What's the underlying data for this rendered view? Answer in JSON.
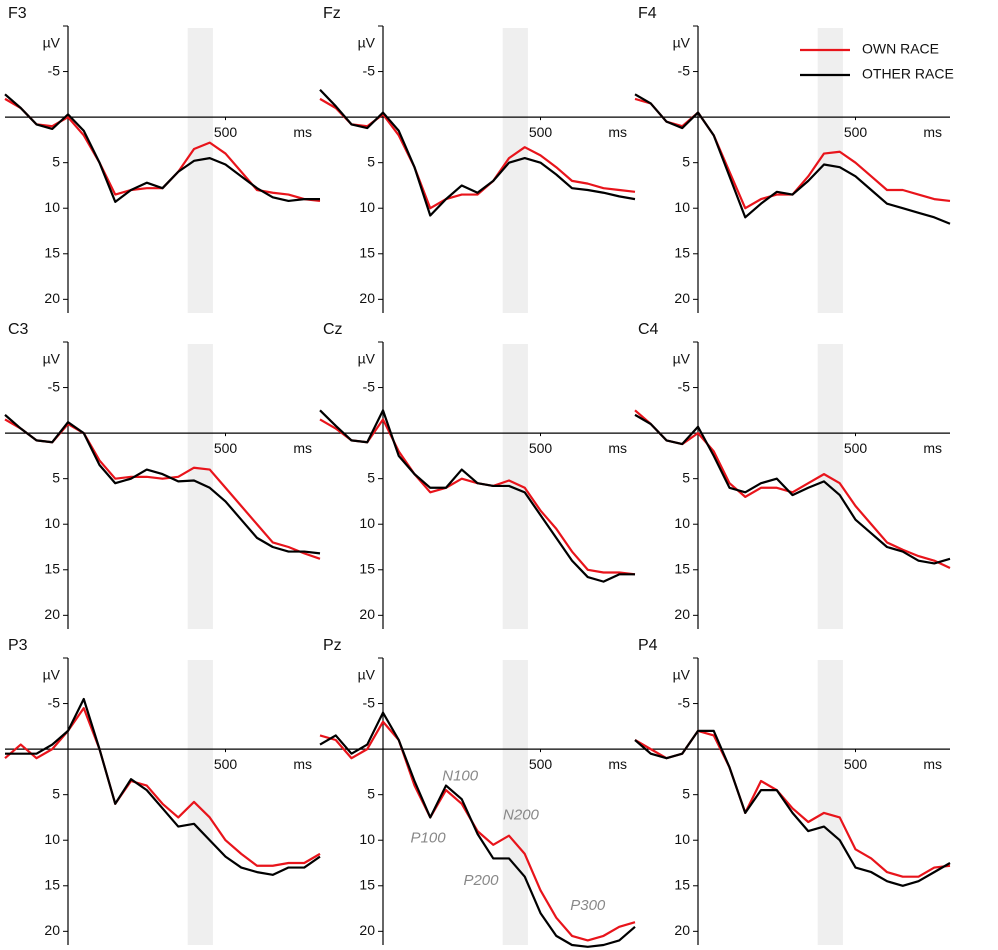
{
  "chart_data": [
    {
      "type": "line",
      "title": "F3",
      "ylabel": "µV",
      "xlabel": "ms",
      "x": [
        -200,
        -150,
        -100,
        -50,
        0,
        50,
        100,
        150,
        200,
        250,
        300,
        350,
        400,
        450,
        500,
        550,
        600,
        650,
        700,
        750,
        800
      ],
      "xlim": [
        -200,
        800
      ],
      "ylim": [
        21.5,
        -10
      ],
      "xticks": [
        500
      ],
      "yticks": [
        -5,
        5,
        10,
        15,
        20
      ],
      "shaded_range": [
        380,
        460
      ],
      "series": [
        {
          "color": "#e8141b",
          "values": [
            -2,
            -1,
            0.8,
            1,
            0,
            2,
            5,
            8.5,
            8,
            7.8,
            7.8,
            6,
            3.5,
            2.8,
            4,
            6,
            8,
            8.3,
            8.5,
            9,
            9.2
          ]
        },
        {
          "color": "#000000",
          "values": [
            -2.5,
            -1,
            0.8,
            1.3,
            -0.3,
            1.5,
            5,
            9.3,
            8,
            7.2,
            7.8,
            6,
            4.8,
            4.5,
            5.2,
            6.5,
            7.8,
            8.8,
            9.2,
            9,
            9
          ]
        }
      ]
    },
    {
      "type": "line",
      "title": "Fz",
      "ylabel": "µV",
      "xlabel": "ms",
      "x": [
        -200,
        -150,
        -100,
        -50,
        0,
        50,
        100,
        150,
        200,
        250,
        300,
        350,
        400,
        450,
        500,
        550,
        600,
        650,
        700,
        750,
        800
      ],
      "xlim": [
        -200,
        800
      ],
      "ylim": [
        21.5,
        -10
      ],
      "xticks": [
        500
      ],
      "yticks": [
        -5,
        5,
        10,
        15,
        20
      ],
      "shaded_range": [
        380,
        460
      ],
      "series": [
        {
          "color": "#e8141b",
          "values": [
            -2,
            -1,
            0.8,
            1,
            -0.3,
            2,
            5.5,
            10,
            9,
            8.5,
            8.5,
            7,
            4.5,
            3.3,
            4.2,
            5.5,
            7,
            7.3,
            7.8,
            8,
            8.2
          ]
        },
        {
          "color": "#000000",
          "values": [
            -3,
            -1.2,
            0.8,
            1.2,
            -0.5,
            1.5,
            5.5,
            10.8,
            9,
            7.5,
            8.3,
            7,
            5,
            4.5,
            5,
            6.3,
            7.8,
            8,
            8.3,
            8.7,
            9
          ]
        }
      ]
    },
    {
      "type": "line",
      "title": "F4",
      "ylabel": "µV",
      "xlabel": "ms",
      "legend": "upper right",
      "x": [
        -200,
        -150,
        -100,
        -50,
        0,
        50,
        100,
        150,
        200,
        250,
        300,
        350,
        400,
        450,
        500,
        550,
        600,
        650,
        700,
        750,
        800
      ],
      "xlim": [
        -200,
        800
      ],
      "ylim": [
        21.5,
        -10
      ],
      "xticks": [
        500
      ],
      "yticks": [
        -5,
        5,
        10,
        15,
        20
      ],
      "shaded_range": [
        380,
        460
      ],
      "series": [
        {
          "name": "OWN RACE",
          "color": "#e8141b",
          "values": [
            -2,
            -1.5,
            0.5,
            1,
            -0.5,
            2,
            6,
            10,
            9,
            8.5,
            8.5,
            6.5,
            4,
            3.8,
            5,
            6.5,
            8,
            8,
            8.5,
            9,
            9.2
          ]
        },
        {
          "name": "OTHER RACE",
          "color": "#000000",
          "values": [
            -2.5,
            -1.5,
            0.5,
            1.2,
            -0.5,
            2,
            6.5,
            11,
            9.5,
            8.2,
            8.5,
            7,
            5.2,
            5.5,
            6.5,
            8,
            9.5,
            10,
            10.5,
            11,
            11.7
          ]
        }
      ]
    },
    {
      "type": "line",
      "title": "C3",
      "ylabel": "µV",
      "xlabel": "ms",
      "x": [
        -200,
        -150,
        -100,
        -50,
        0,
        50,
        100,
        150,
        200,
        250,
        300,
        350,
        400,
        450,
        500,
        550,
        600,
        650,
        700,
        750,
        800
      ],
      "xlim": [
        -200,
        800
      ],
      "ylim": [
        21.5,
        -10
      ],
      "xticks": [
        500
      ],
      "yticks": [
        -5,
        5,
        10,
        15,
        20
      ],
      "shaded_range": [
        380,
        460
      ],
      "series": [
        {
          "color": "#e8141b",
          "values": [
            -1.5,
            -0.5,
            0.8,
            1,
            -1,
            0,
            3,
            5,
            4.8,
            4.8,
            5,
            4.8,
            3.8,
            4,
            6,
            8,
            10,
            12,
            12.5,
            13.2,
            13.8
          ]
        },
        {
          "color": "#000000",
          "values": [
            -2,
            -0.5,
            0.8,
            1,
            -1.2,
            0,
            3.5,
            5.5,
            5,
            4,
            4.5,
            5.3,
            5.2,
            6,
            7.5,
            9.5,
            11.5,
            12.5,
            13,
            13,
            13.2
          ]
        }
      ]
    },
    {
      "type": "line",
      "title": "Cz",
      "ylabel": "µV",
      "xlabel": "ms",
      "x": [
        -200,
        -150,
        -100,
        -50,
        0,
        50,
        100,
        150,
        200,
        250,
        300,
        350,
        400,
        450,
        500,
        550,
        600,
        650,
        700,
        750,
        800
      ],
      "xlim": [
        -200,
        800
      ],
      "ylim": [
        21.5,
        -10
      ],
      "xticks": [
        500
      ],
      "yticks": [
        -5,
        5,
        10,
        15,
        20
      ],
      "shaded_range": [
        380,
        460
      ],
      "series": [
        {
          "color": "#e8141b",
          "values": [
            -1.5,
            -0.5,
            0.8,
            1,
            -1.5,
            2,
            4.5,
            6.5,
            6,
            5,
            5.5,
            5.8,
            5.2,
            6,
            8.5,
            10.5,
            13,
            15,
            15.3,
            15.3,
            15.5
          ]
        },
        {
          "color": "#000000",
          "values": [
            -2.5,
            -0.8,
            0.8,
            1,
            -2.5,
            2.5,
            4.5,
            6,
            6,
            4,
            5.5,
            5.8,
            5.8,
            6.5,
            9,
            11.5,
            14,
            15.8,
            16.3,
            15.5,
            15.5
          ]
        }
      ]
    },
    {
      "type": "line",
      "title": "C4",
      "ylabel": "µV",
      "xlabel": "ms",
      "x": [
        -200,
        -150,
        -100,
        -50,
        0,
        50,
        100,
        150,
        200,
        250,
        300,
        350,
        400,
        450,
        500,
        550,
        600,
        650,
        700,
        750,
        800
      ],
      "xlim": [
        -200,
        800
      ],
      "ylim": [
        21.5,
        -10
      ],
      "xticks": [
        500
      ],
      "yticks": [
        -5,
        5,
        10,
        15,
        20
      ],
      "shaded_range": [
        380,
        460
      ],
      "series": [
        {
          "color": "#e8141b",
          "values": [
            -2.5,
            -1,
            0.8,
            1.2,
            0,
            2,
            5.5,
            7,
            6,
            6,
            6.5,
            5.5,
            4.5,
            5.5,
            8,
            10,
            12,
            12.8,
            13.5,
            14,
            14.8
          ]
        },
        {
          "color": "#000000",
          "values": [
            -2,
            -1,
            0.8,
            1.2,
            -0.7,
            2.5,
            6,
            6.5,
            5.5,
            5,
            6.8,
            6,
            5.3,
            6.8,
            9.5,
            11,
            12.5,
            13,
            14,
            14.3,
            13.8
          ]
        }
      ]
    },
    {
      "type": "line",
      "title": "P3",
      "ylabel": "µV",
      "xlabel": "ms",
      "x": [
        -200,
        -150,
        -100,
        -50,
        0,
        50,
        100,
        150,
        200,
        250,
        300,
        350,
        400,
        450,
        500,
        550,
        600,
        650,
        700,
        750,
        800
      ],
      "xlim": [
        -200,
        800
      ],
      "ylim": [
        21.5,
        -10
      ],
      "xticks": [
        500
      ],
      "yticks": [
        -5,
        5,
        10,
        15,
        20
      ],
      "shaded_range": [
        380,
        460
      ],
      "series": [
        {
          "color": "#e8141b",
          "values": [
            1,
            -0.5,
            1,
            0,
            -2,
            -4.5,
            0,
            6,
            3.5,
            4,
            6,
            7.5,
            5.8,
            7.5,
            10,
            11.5,
            12.8,
            12.8,
            12.5,
            12.5,
            11.5
          ]
        },
        {
          "color": "#000000",
          "values": [
            0.5,
            0.5,
            0.5,
            -0.5,
            -2,
            -5.5,
            0,
            6,
            3.3,
            4.5,
            6.5,
            8.5,
            8.2,
            10,
            11.8,
            13,
            13.5,
            13.8,
            13,
            13,
            11.8
          ]
        }
      ]
    },
    {
      "type": "line",
      "title": "Pz",
      "ylabel": "µV",
      "xlabel": "ms",
      "x": [
        -200,
        -150,
        -100,
        -50,
        0,
        50,
        100,
        150,
        200,
        250,
        300,
        350,
        400,
        450,
        500,
        550,
        600,
        650,
        700,
        750,
        800
      ],
      "xlim": [
        -200,
        800
      ],
      "ylim": [
        21.5,
        -10
      ],
      "xticks": [
        500
      ],
      "yticks": [
        -5,
        5,
        10,
        15,
        20
      ],
      "shaded_range": [
        380,
        460
      ],
      "series": [
        {
          "color": "#e8141b",
          "values": [
            -1.5,
            -1,
            1,
            0,
            -3,
            -1,
            4,
            7.5,
            4.5,
            6,
            9,
            10.5,
            9.5,
            11.5,
            15.5,
            18.5,
            20.5,
            21,
            20.5,
            19.5,
            19
          ]
        },
        {
          "color": "#000000",
          "values": [
            -0.5,
            -1.5,
            0.5,
            -0.5,
            -4,
            -1,
            3.5,
            7.5,
            4,
            5.5,
            9.3,
            12,
            12,
            14,
            18,
            20.5,
            21.5,
            21.7,
            21.5,
            21,
            19.5
          ]
        }
      ],
      "annotations": [
        {
          "text": "N100",
          "x": 245,
          "y": 3
        },
        {
          "text": "P100",
          "x": 143,
          "y": 9.8
        },
        {
          "text": "N200",
          "x": 438,
          "y": 7.3
        },
        {
          "text": "P200",
          "x": 311,
          "y": 14.5
        },
        {
          "text": "P300",
          "x": 650,
          "y": 17.2
        }
      ]
    },
    {
      "type": "line",
      "title": "P4",
      "ylabel": "µV",
      "xlabel": "ms",
      "x": [
        -200,
        -150,
        -100,
        -50,
        0,
        50,
        100,
        150,
        200,
        250,
        300,
        350,
        400,
        450,
        500,
        550,
        600,
        650,
        700,
        750,
        800
      ],
      "xlim": [
        -200,
        800
      ],
      "ylim": [
        21.5,
        -10
      ],
      "xticks": [
        500
      ],
      "yticks": [
        -5,
        5,
        10,
        15,
        20
      ],
      "shaded_range": [
        380,
        460
      ],
      "series": [
        {
          "color": "#e8141b",
          "values": [
            -1,
            0,
            1,
            0.5,
            -2,
            -1.5,
            2,
            7,
            3.5,
            4.5,
            6.5,
            8,
            7,
            7.5,
            11,
            12,
            13.5,
            14,
            14,
            13,
            12.8
          ]
        },
        {
          "color": "#000000",
          "values": [
            -1,
            0.5,
            1,
            0.5,
            -2,
            -2,
            2,
            7,
            4.5,
            4.5,
            7,
            9,
            8.5,
            10,
            13,
            13.5,
            14.5,
            15,
            14.5,
            13.5,
            12.5
          ]
        }
      ]
    }
  ]
}
